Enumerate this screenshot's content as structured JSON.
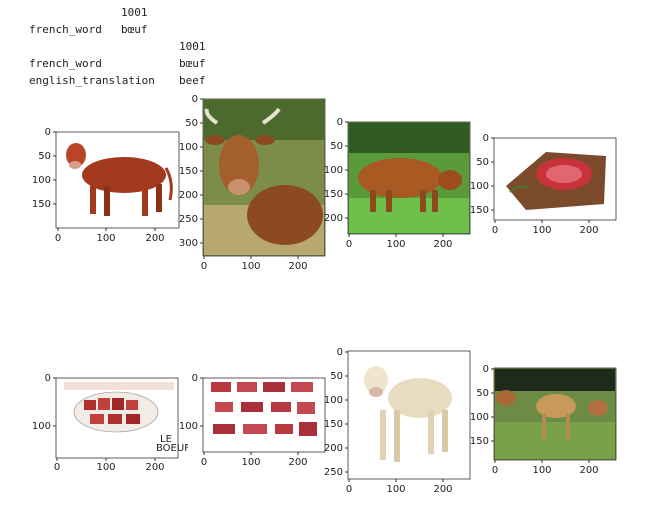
{
  "output": {
    "block1": {
      "index": "1001",
      "row_label": "french_word",
      "row_value": "bœuf"
    },
    "block2": {
      "index": "1001",
      "rows": [
        {
          "label": "french_word",
          "value": "bœuf"
        },
        {
          "label": "english_translation",
          "value": "beef"
        }
      ]
    }
  },
  "figure": {
    "panels": [
      {
        "xticks": [
          "0",
          "100",
          "200"
        ],
        "yticks": [
          "0",
          "50",
          "100",
          "150"
        ],
        "xlim": [
          0,
          250
        ],
        "ylim": [
          0,
          200
        ],
        "subject": "red cow illustration"
      },
      {
        "xticks": [
          "0",
          "100",
          "200"
        ],
        "yticks": [
          "0",
          "50",
          "100",
          "150",
          "200",
          "250",
          "300"
        ],
        "xlim": [
          0,
          250
        ],
        "ylim": [
          0,
          330
        ],
        "subject": "brown cow lying in field"
      },
      {
        "xticks": [
          "0",
          "100",
          "200"
        ],
        "yticks": [
          "0",
          "50",
          "100",
          "150",
          "200"
        ],
        "xlim": [
          0,
          250
        ],
        "ylim": [
          0,
          225
        ],
        "subject": "brown bull on grass"
      },
      {
        "xticks": [
          "0",
          "100",
          "200"
        ],
        "yticks": [
          "0",
          "50",
          "100",
          "150"
        ],
        "xlim": [
          0,
          250
        ],
        "ylim": [
          0,
          170
        ],
        "subject": "raw beef steak on board"
      },
      {
        "xticks": [
          "0",
          "100",
          "200"
        ],
        "yticks": [
          "0",
          "100"
        ],
        "xlim": [
          0,
          250
        ],
        "ylim": [
          0,
          165
        ],
        "subject": "beef cuts diagram",
        "caption_line1": "LE",
        "caption_line2": "BOEUF"
      },
      {
        "xticks": [
          "0",
          "100",
          "200"
        ],
        "yticks": [
          "0",
          "100"
        ],
        "xlim": [
          0,
          250
        ],
        "ylim": [
          0,
          150
        ],
        "subject": "beef cuts chart"
      },
      {
        "xticks": [
          "0",
          "100",
          "200"
        ],
        "yticks": [
          "0",
          "50",
          "100",
          "150",
          "200",
          "250"
        ],
        "xlim": [
          0,
          250
        ],
        "ylim": [
          0,
          270
        ],
        "subject": "white cow"
      },
      {
        "xticks": [
          "0",
          "100",
          "200"
        ],
        "yticks": [
          "0",
          "50",
          "100",
          "150"
        ],
        "xlim": [
          0,
          250
        ],
        "ylim": [
          0,
          190
        ],
        "subject": "cows in pasture"
      }
    ]
  }
}
